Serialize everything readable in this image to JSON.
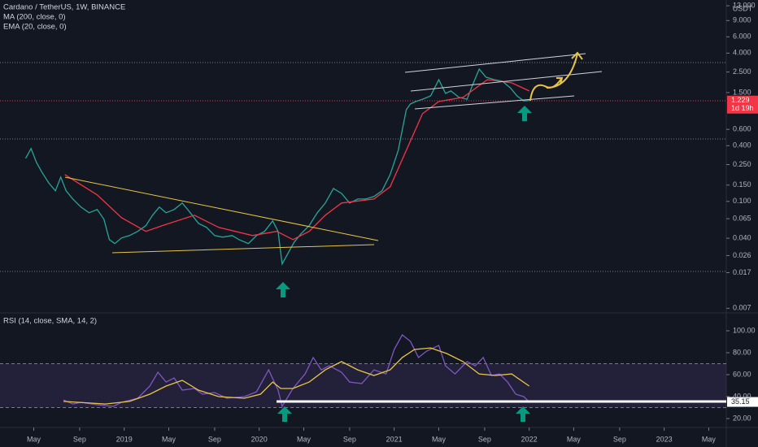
{
  "chart_data": [
    {
      "type": "line",
      "title": "Cardano / TetherUS, 1W, BINANCE",
      "ma_label": "MA (200, close, 0)",
      "log": true,
      "currency": "USDT",
      "countdown": "1d 19h",
      "xlim": [
        2018.08,
        2023.46
      ],
      "ylim": [
        0.0065,
        15
      ],
      "yticks": [
        {
          "value": 13,
          "label": "13.000"
        },
        {
          "value": 9,
          "label": "9.000"
        },
        {
          "value": 6,
          "label": "6.000"
        },
        {
          "value": 4,
          "label": "4.000"
        },
        {
          "value": 2.5,
          "label": "2.500"
        },
        {
          "value": 1.5,
          "label": "1.500"
        },
        {
          "value": 0.6,
          "label": "0.600"
        },
        {
          "value": 0.4,
          "label": "0.400"
        },
        {
          "value": 0.25,
          "label": "0.250"
        },
        {
          "value": 0.15,
          "label": "0.150"
        },
        {
          "value": 0.1,
          "label": "0.100"
        },
        {
          "value": 0.065,
          "label": "0.065"
        },
        {
          "value": 0.04,
          "label": "0.040"
        },
        {
          "value": 0.026,
          "label": "0.026"
        },
        {
          "value": 0.017,
          "label": "0.017"
        },
        {
          "value": 0.007,
          "label": "0.007"
        }
      ],
      "series": [
        {
          "color": "#26a69a",
          "x": [
            2018.27,
            2018.31,
            2018.35,
            2018.39,
            2018.44,
            2018.49,
            2018.53,
            2018.57,
            2018.62,
            2018.68,
            2018.74,
            2018.8,
            2018.85,
            2018.89,
            2018.93,
            2018.98,
            2019.04,
            2019.1,
            2019.16,
            2019.21,
            2019.26,
            2019.31,
            2019.37,
            2019.43,
            2019.49,
            2019.55,
            2019.61,
            2019.67,
            2019.73,
            2019.8,
            2019.85,
            2019.92,
            2019.98,
            2020.04,
            2020.1,
            2020.14,
            2020.17,
            2020.22,
            2020.26,
            2020.31,
            2020.37,
            2020.43,
            2020.49,
            2020.55,
            2020.61,
            2020.67,
            2020.73,
            2020.79,
            2020.85,
            2020.91,
            2020.97,
            2021.03,
            2021.06,
            2021.09,
            2021.12,
            2021.16,
            2021.21,
            2021.27,
            2021.33,
            2021.38,
            2021.42,
            2021.48,
            2021.54,
            2021.58,
            2021.63,
            2021.68,
            2021.74,
            2021.8,
            2021.86,
            2021.91,
            2021.96,
            2022.0
          ],
          "values": [
            0.292,
            0.372,
            0.264,
            0.207,
            0.159,
            0.13,
            0.183,
            0.13,
            0.106,
            0.0868,
            0.0754,
            0.0817,
            0.0641,
            0.0387,
            0.035,
            0.0403,
            0.0428,
            0.0474,
            0.0546,
            0.071,
            0.0868,
            0.0754,
            0.0817,
            0.096,
            0.0754,
            0.058,
            0.0524,
            0.0428,
            0.0411,
            0.0428,
            0.0387,
            0.035,
            0.0428,
            0.0474,
            0.0616,
            0.0474,
            0.0211,
            0.0286,
            0.0364,
            0.0446,
            0.0546,
            0.0754,
            0.096,
            0.138,
            0.122,
            0.096,
            0.106,
            0.106,
            0.113,
            0.13,
            0.195,
            0.357,
            0.592,
            0.98,
            1.13,
            1.2,
            1.27,
            1.38,
            2.07,
            1.47,
            1.56,
            1.33,
            1.27,
            1.8,
            2.69,
            2.2,
            2.07,
            1.99,
            1.69,
            1.38,
            1.22,
            1.229
          ]
        },
        {
          "name": "EMA (20, close, 0)",
          "color": "#f23645",
          "x": [
            2018.56,
            2018.8,
            2018.98,
            2019.16,
            2019.28,
            2019.52,
            2019.7,
            2019.95,
            2020.13,
            2020.25,
            2020.37,
            2020.49,
            2020.61,
            2020.85,
            2020.97,
            2021.09,
            2021.21,
            2021.33,
            2021.51,
            2021.69,
            2021.87,
            2022.0
          ],
          "values": [
            0.195,
            0.1175,
            0.0668,
            0.0474,
            0.0546,
            0.071,
            0.0524,
            0.0428,
            0.0474,
            0.0387,
            0.0474,
            0.071,
            0.096,
            0.106,
            0.144,
            0.357,
            0.886,
            1.2,
            1.33,
            2.07,
            1.91,
            1.56
          ]
        }
      ]
    },
    {
      "type": "line",
      "title": "RSI (14, close, SMA, 14, 2)",
      "xlim": [
        2018.08,
        2023.46
      ],
      "ylim": [
        12.6,
        116.3
      ],
      "band": [
        30,
        70
      ],
      "yticks": [
        {
          "value": 100,
          "label": "100.00"
        },
        {
          "value": 80,
          "label": "80.00"
        },
        {
          "value": 60,
          "label": "60.00"
        },
        {
          "value": 40,
          "label": "40.00"
        },
        {
          "value": 20,
          "label": "20.00"
        }
      ],
      "xticks": [
        {
          "value": 2018.33,
          "label": "May"
        },
        {
          "value": 2018.67,
          "label": "Sep"
        },
        2019,
        {
          "value": 2019.33,
          "label": "May"
        },
        {
          "value": 2019.67,
          "label": "Sep"
        },
        2020,
        {
          "value": 2020.33,
          "label": "May"
        },
        {
          "value": 2020.67,
          "label": "Sep"
        },
        2021,
        {
          "value": 2021.33,
          "label": "May"
        },
        {
          "value": 2021.67,
          "label": "Sep"
        },
        2022,
        {
          "value": 2022.33,
          "label": "May"
        },
        {
          "value": 2022.67,
          "label": "Sep"
        },
        2023,
        {
          "value": 2023.33,
          "label": "May"
        }
      ],
      "series": [
        {
          "color": "#7e57c2",
          "x": [
            2018.55,
            2018.62,
            2018.68,
            2018.8,
            2018.92,
            2018.98,
            2019.1,
            2019.19,
            2019.25,
            2019.31,
            2019.37,
            2019.43,
            2019.52,
            2019.58,
            2019.67,
            2019.76,
            2019.89,
            2019.98,
            2020.07,
            2020.14,
            2020.17,
            2020.25,
            2020.34,
            2020.4,
            2020.46,
            2020.52,
            2020.61,
            2020.67,
            2020.76,
            2020.85,
            2020.94,
            2021.0,
            2021.06,
            2021.12,
            2021.18,
            2021.24,
            2021.33,
            2021.38,
            2021.45,
            2021.54,
            2021.6,
            2021.66,
            2021.72,
            2021.78,
            2021.84,
            2021.9,
            2021.96,
            2022.0
          ],
          "values": [
            37.0,
            33.3,
            34.8,
            32.6,
            31.1,
            34.8,
            38.5,
            49.6,
            62.2,
            53.3,
            57.0,
            45.9,
            47.4,
            42.2,
            43.7,
            38.5,
            40.0,
            44.4,
            64.4,
            45.9,
            31.1,
            47.4,
            60.7,
            75.6,
            64.4,
            68.1,
            62.2,
            53.3,
            51.9,
            64.4,
            60.7,
            83.0,
            96.3,
            90.4,
            75.6,
            81.5,
            86.7,
            68.1,
            60.7,
            71.9,
            68.1,
            75.6,
            59.3,
            60.7,
            53.3,
            42.2,
            40.0,
            35.15
          ]
        },
        {
          "color": "#e8c547",
          "x": [
            2018.55,
            2018.86,
            2019.04,
            2019.19,
            2019.31,
            2019.43,
            2019.55,
            2019.7,
            2019.89,
            2020.01,
            2020.1,
            2020.16,
            2020.25,
            2020.37,
            2020.49,
            2020.61,
            2020.73,
            2020.85,
            2020.97,
            2021.06,
            2021.15,
            2021.27,
            2021.39,
            2021.51,
            2021.63,
            2021.75,
            2021.87,
            2022.0
          ],
          "values": [
            35.6,
            33.3,
            35.6,
            42.2,
            49.6,
            54.8,
            45.9,
            40.0,
            38.5,
            42.2,
            53.3,
            47.4,
            47.4,
            53.3,
            64.4,
            71.9,
            64.4,
            59.3,
            64.4,
            75.6,
            83.0,
            84.4,
            79.3,
            71.9,
            60.7,
            59.3,
            60.7,
            49.6
          ]
        }
      ]
    }
  ]
}
